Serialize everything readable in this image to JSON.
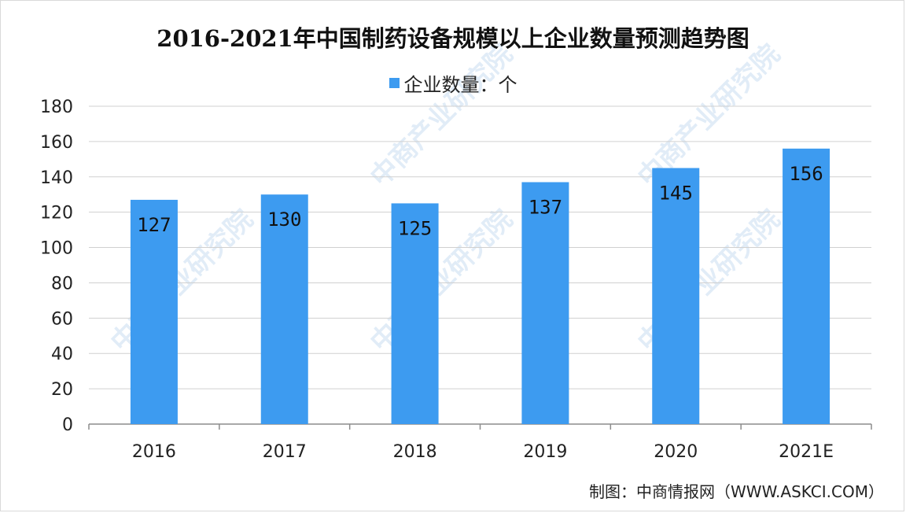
{
  "chart_data": {
    "type": "bar",
    "title": "2016-2021年中国制药设备规模以上企业数量预测趋势图",
    "legend": "企业数量：个",
    "categories": [
      "2016",
      "2017",
      "2018",
      "2019",
      "2020",
      "2021E"
    ],
    "series": [
      {
        "name": "企业数量：个",
        "values": [
          127,
          130,
          125,
          137,
          145,
          156
        ]
      }
    ],
    "ylim": [
      0,
      180
    ],
    "yticks": [
      0,
      20,
      40,
      60,
      80,
      100,
      120,
      140,
      160,
      180
    ],
    "grid": true,
    "legend_position": "top-center",
    "bar_color": "#3d9bf0"
  },
  "source": "制图：中商情报网（WWW.ASKCI.COM）",
  "watermark": "中商产业研究院"
}
